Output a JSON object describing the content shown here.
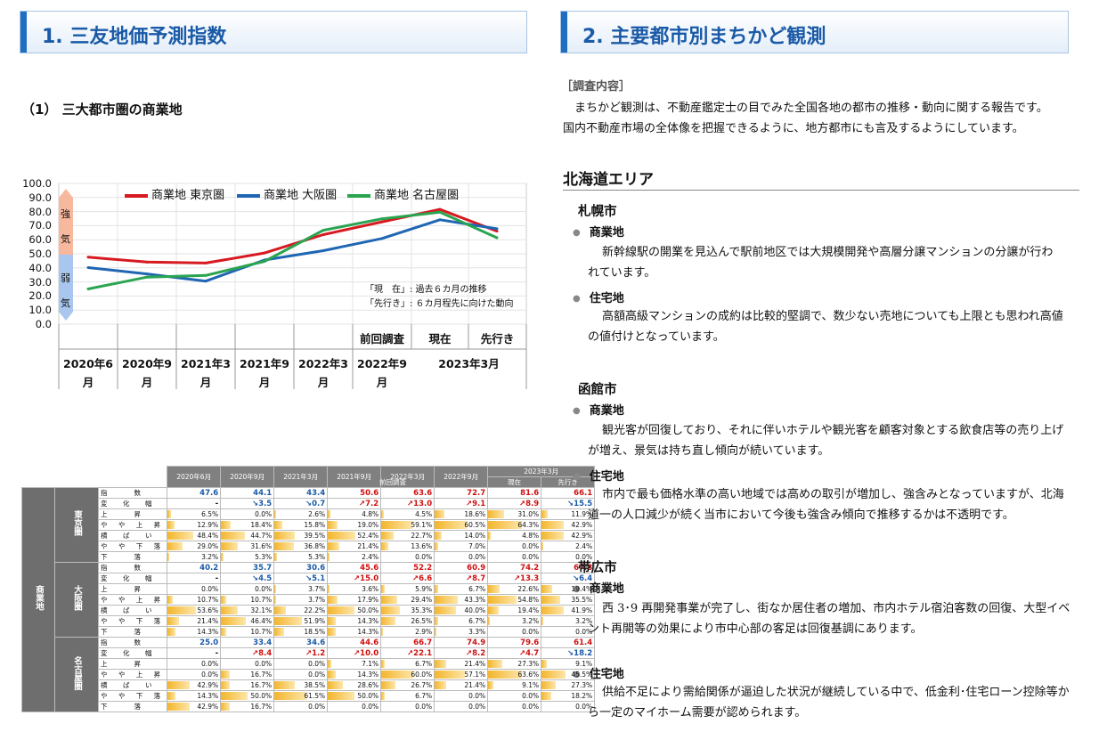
{
  "section1": {
    "num": "1.",
    "title": "三友地価予測指数"
  },
  "section2": {
    "num": "2.",
    "title": "主要都市別まちかど観測"
  },
  "chart_sub": "（1） 三大都市圏の商業地",
  "chart_data": {
    "type": "line",
    "categories": [
      "2020年6月",
      "2020年9月",
      "2021年3月",
      "2021年9月",
      "2022年3月",
      "2022年9月",
      "現在",
      "先行き"
    ],
    "series": [
      {
        "name": "商業地 東京圏",
        "color": "#d71920",
        "values": [
          47.6,
          44.1,
          43.4,
          50.6,
          63.6,
          72.7,
          81.6,
          66.1
        ]
      },
      {
        "name": "商業地 大阪圏",
        "color": "#1f66b3",
        "values": [
          40.2,
          35.7,
          30.6,
          45.6,
          52.2,
          60.9,
          74.2,
          67.8
        ]
      },
      {
        "name": "商業地 名古屋圏",
        "color": "#2aa450",
        "values": [
          25.0,
          33.4,
          34.6,
          44.6,
          66.7,
          74.9,
          79.6,
          61.4
        ]
      }
    ],
    "ylim": [
      0,
      100
    ],
    "yticks": [
      "100.0",
      "90.0",
      "80.0",
      "70.0",
      "60.0",
      "50.0",
      "40.0",
      "30.0",
      "20.0",
      "10.0",
      "0.0"
    ],
    "strong_label": [
      "強",
      "気"
    ],
    "weak_label": [
      "弱",
      "気"
    ],
    "notes": [
      "「現　在」: 過去６カ月の推移",
      "「先行き」: ６カ月程先に向けた動向"
    ],
    "x_top": [
      "前回調査",
      "現在",
      "先行き"
    ],
    "x_bottom": [
      [
        "2020年6",
        "月"
      ],
      [
        "2020年9",
        "月"
      ],
      [
        "2021年3",
        "月"
      ],
      [
        "2021年9",
        "月"
      ],
      [
        "2022年3",
        "月"
      ],
      [
        "2022年9",
        "月"
      ]
    ],
    "x_bottom_last": "2023年3月"
  },
  "table": {
    "headers": [
      "2020年6月",
      "2020年9月",
      "2021年3月",
      "2021年9月",
      "2022年3月",
      "2022年9月",
      "2023年3月"
    ],
    "sub_prev": "前回調査",
    "sub_now": "現在",
    "sub_next": "先行き",
    "outer_label": "商業地",
    "row_labels": [
      "指　　数",
      "変　化　幅",
      "上　　昇",
      "や や 上 昇",
      "横　ば　い",
      "や や 下 落",
      "下　　落"
    ],
    "regions": [
      {
        "name": "東京圏",
        "index": [
          "47.6",
          "44.1",
          "43.4",
          "50.6",
          "63.6",
          "72.7",
          "81.6",
          "66.1"
        ],
        "change": [
          "-",
          "↘3.5",
          "↘0.7",
          "↗7.2",
          "↗13.0",
          "↗9.1",
          "↗8.9",
          "↘15.5"
        ],
        "rows": [
          [
            "6.5%",
            "0.0%",
            "2.6%",
            "4.8%",
            "4.5%",
            "18.6%",
            "31.0%",
            "11.9%"
          ],
          [
            "12.9%",
            "18.4%",
            "15.8%",
            "19.0%",
            "59.1%",
            "60.5%",
            "64.3%",
            "42.9%"
          ],
          [
            "48.4%",
            "44.7%",
            "39.5%",
            "52.4%",
            "22.7%",
            "14.0%",
            "4.8%",
            "42.9%"
          ],
          [
            "29.0%",
            "31.6%",
            "36.8%",
            "21.4%",
            "13.6%",
            "7.0%",
            "0.0%",
            "2.4%"
          ],
          [
            "3.2%",
            "5.3%",
            "5.3%",
            "2.4%",
            "0.0%",
            "0.0%",
            "0.0%",
            "0.0%"
          ]
        ]
      },
      {
        "name": "大阪圏",
        "index": [
          "40.2",
          "35.7",
          "30.6",
          "45.6",
          "52.2",
          "60.9",
          "74.2",
          "67.8"
        ],
        "change": [
          "-",
          "↘4.5",
          "↘5.1",
          "↗15.0",
          "↗6.6",
          "↗8.7",
          "↗13.3",
          "↘6.4"
        ],
        "rows": [
          [
            "0.0%",
            "0.0%",
            "3.7%",
            "3.6%",
            "5.9%",
            "6.7%",
            "22.6%",
            "19.4%"
          ],
          [
            "10.7%",
            "10.7%",
            "3.7%",
            "17.9%",
            "29.4%",
            "43.3%",
            "54.8%",
            "35.5%"
          ],
          [
            "53.6%",
            "32.1%",
            "22.2%",
            "50.0%",
            "35.3%",
            "40.0%",
            "19.4%",
            "41.9%"
          ],
          [
            "21.4%",
            "46.4%",
            "51.9%",
            "14.3%",
            "26.5%",
            "6.7%",
            "3.2%",
            "3.2%"
          ],
          [
            "14.3%",
            "10.7%",
            "18.5%",
            "14.3%",
            "2.9%",
            "3.3%",
            "0.0%",
            "0.0%"
          ]
        ]
      },
      {
        "name": "名古屋圏",
        "index": [
          "25.0",
          "33.4",
          "34.6",
          "44.6",
          "66.7",
          "74.9",
          "79.6",
          "61.4"
        ],
        "change": [
          "-",
          "↗8.4",
          "↗1.2",
          "↗10.0",
          "↗22.1",
          "↗8.2",
          "↗4.7",
          "↘18.2"
        ],
        "rows": [
          [
            "0.0%",
            "0.0%",
            "0.0%",
            "7.1%",
            "6.7%",
            "21.4%",
            "27.3%",
            "9.1%"
          ],
          [
            "0.0%",
            "16.7%",
            "0.0%",
            "14.3%",
            "60.0%",
            "57.1%",
            "63.6%",
            "45.5%"
          ],
          [
            "42.9%",
            "16.7%",
            "38.5%",
            "28.6%",
            "26.7%",
            "21.4%",
            "9.1%",
            "27.3%"
          ],
          [
            "14.3%",
            "50.0%",
            "61.5%",
            "50.0%",
            "6.7%",
            "0.0%",
            "0.0%",
            "18.2%"
          ],
          [
            "42.9%",
            "16.7%",
            "0.0%",
            "0.0%",
            "0.0%",
            "0.0%",
            "0.0%",
            "0.0%"
          ]
        ]
      }
    ]
  },
  "right": {
    "survey_heading": "［調査内容］",
    "survey_line1": "　まちかど観測は、不動産鑑定士の目でみた全国各地の都市の推移・動向に関する報告です。",
    "survey_line2": "国内不動産市場の全体像を把握できるように、地方都市にも言及するようにしています。",
    "area": "北海道エリア",
    "commercial": "商業地",
    "residential": "住宅地",
    "cities": [
      {
        "name": "札幌市",
        "c1": "新幹線駅の開業を見込んで駅前地区では大規模開発や高層分譲マンションの分譲が行わ",
        "c2": "れています。",
        "r1": "高額高級マンションの成約は比較的堅調で、数少ない売地についても上限とも思われ高値",
        "r2": "の値付けとなっています。"
      },
      {
        "name": "函館市",
        "c1": "観光客が回復しており、それに伴いホテルや観光客を顧客対象とする飲食店等の売り上げ",
        "c2": "が増え、景気は持ち直し傾向が続いています。",
        "r1": "市内で最も価格水準の高い地域では高めの取引が増加し、強含みとなっていますが、北海",
        "r2": "道一の人口減少が続く当市において今後も強含み傾向で推移するかは不透明です。"
      },
      {
        "name": "帯広市",
        "c1": "西 3･9 再開発事業が完了し、街なか居住者の増加、市内ホテル宿泊客数の回復、大型イベ",
        "c2": "ント再開等の効果により市中心部の客足は回復基調にあります。",
        "r1": "供給不足により需給関係が逼迫した状況が継続している中で、低金利･住宅ローン控除等か",
        "r2": "ら一定のマイホーム需要が認められます。"
      }
    ]
  }
}
